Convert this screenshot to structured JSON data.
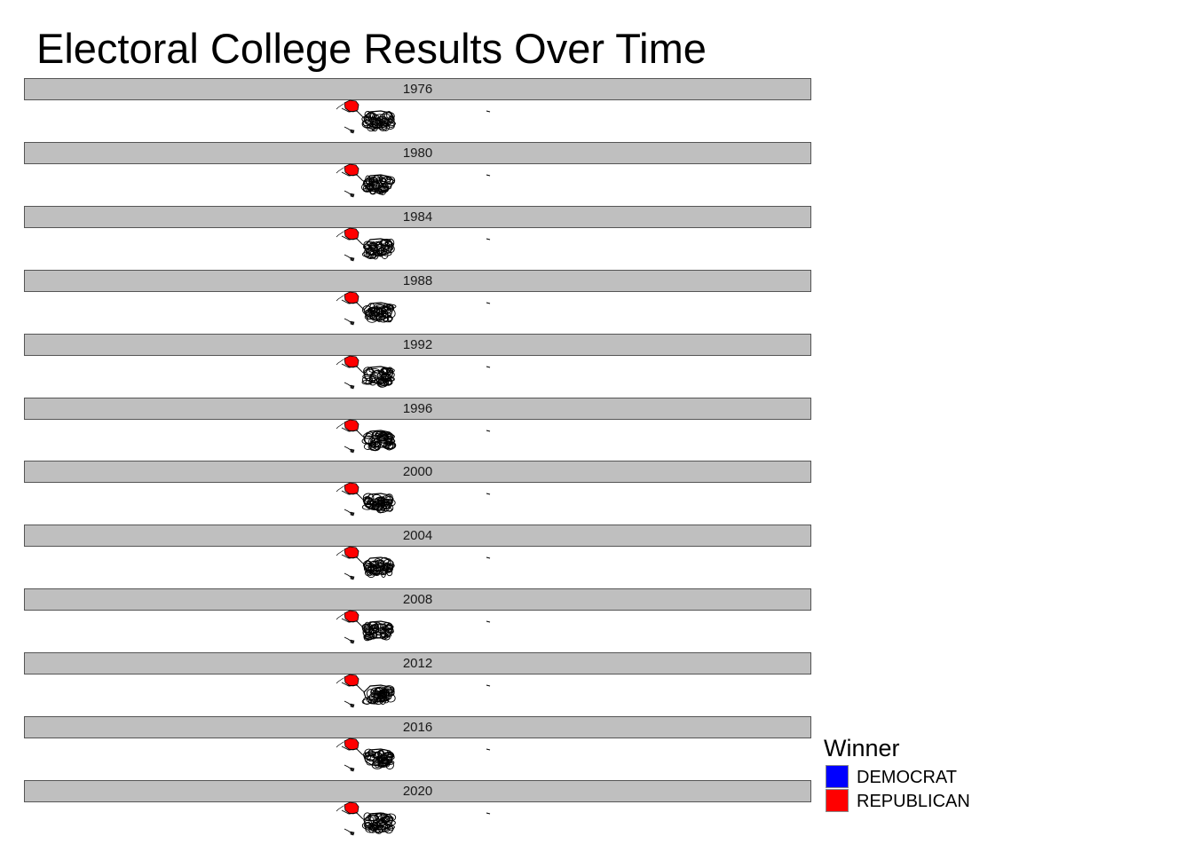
{
  "chart_data": {
    "type": "choropleth-facets",
    "title": "Electoral College Results Over Time",
    "facets": [
      {
        "label": "1976"
      },
      {
        "label": "1980"
      },
      {
        "label": "1984"
      },
      {
        "label": "1988"
      },
      {
        "label": "1992"
      },
      {
        "label": "1996"
      },
      {
        "label": "2000"
      },
      {
        "label": "2004"
      },
      {
        "label": "2008"
      },
      {
        "label": "2012"
      },
      {
        "label": "2016"
      },
      {
        "label": "2020"
      }
    ],
    "legend": {
      "title": "Winner",
      "placement": "bottom-right",
      "entries": [
        {
          "label": "DEMOCRAT",
          "color": "#0000ff"
        },
        {
          "label": "REPUBLICAN",
          "color": "#ff0000"
        }
      ]
    },
    "strip_color": "#bfbfbf",
    "outline_color": "#000000"
  }
}
